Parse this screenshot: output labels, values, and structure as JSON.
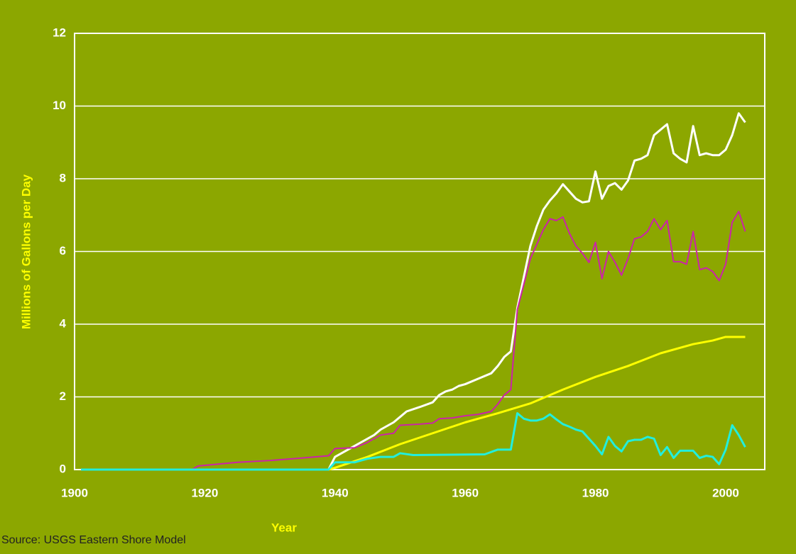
{
  "chart_data": {
    "type": "line",
    "x_label": "Year",
    "y_label": "Millions of Gallons per Day",
    "source": "Source: USGS Eastern Shore Model",
    "xlim": [
      1900,
      2006
    ],
    "xticks": [
      1900,
      1920,
      1940,
      1960,
      1980,
      2000
    ],
    "ylim": [
      0,
      12
    ],
    "yticks": [
      0,
      2,
      4,
      6,
      8,
      10,
      12
    ],
    "grid": true,
    "series": [
      {
        "color": "#ffffff",
        "x": [
          1901,
          1939,
          1940,
          1942,
          1944,
          1946,
          1947,
          1949,
          1950,
          1951,
          1953,
          1955,
          1956,
          1957,
          1958,
          1959,
          1960,
          1962,
          1964,
          1965,
          1966,
          1967,
          1968,
          1969,
          1970,
          1971,
          1972,
          1973,
          1974,
          1975,
          1976,
          1977,
          1978,
          1979,
          1980,
          1981,
          1982,
          1983,
          1984,
          1985,
          1986,
          1987,
          1988,
          1989,
          1990,
          1991,
          1992,
          1993,
          1994,
          1995,
          1996,
          1997,
          1998,
          1999,
          2000,
          2001,
          2002,
          2003
        ],
        "values": [
          0,
          0,
          0.35,
          0.55,
          0.75,
          0.95,
          1.1,
          1.3,
          1.45,
          1.6,
          1.72,
          1.85,
          2.05,
          2.15,
          2.2,
          2.3,
          2.35,
          2.5,
          2.65,
          2.85,
          3.1,
          3.25,
          4.45,
          5.3,
          6.15,
          6.7,
          7.15,
          7.4,
          7.6,
          7.85,
          7.65,
          7.45,
          7.35,
          7.38,
          8.2,
          7.45,
          7.8,
          7.88,
          7.7,
          7.95,
          8.5,
          8.55,
          8.65,
          9.2,
          9.35,
          9.5,
          8.7,
          8.55,
          8.45,
          9.45,
          8.65,
          8.7,
          8.65,
          8.65,
          8.8,
          9.2,
          9.8,
          9.55
        ]
      },
      {
        "color": "#cc22aa",
        "x": [
          1901,
          1918,
          1919,
          1925,
          1930,
          1935,
          1939,
          1940,
          1943,
          1945,
          1947,
          1949,
          1950,
          1953,
          1955,
          1956,
          1958,
          1960,
          1962,
          1964,
          1965,
          1966,
          1967,
          1968,
          1969,
          1970,
          1971,
          1972,
          1973,
          1974,
          1975,
          1976,
          1977,
          1978,
          1979,
          1980,
          1981,
          1982,
          1983,
          1984,
          1985,
          1986,
          1987,
          1988,
          1989,
          1990,
          1991,
          1992,
          1993,
          1994,
          1995,
          1996,
          1997,
          1998,
          1999,
          2000,
          2001,
          2002,
          2003
        ],
        "values": [
          0,
          0,
          0.1,
          0.2,
          0.25,
          0.32,
          0.38,
          0.58,
          0.6,
          0.75,
          0.95,
          1.0,
          1.22,
          1.25,
          1.28,
          1.4,
          1.42,
          1.48,
          1.52,
          1.6,
          1.8,
          2.05,
          2.2,
          4.4,
          5.1,
          5.8,
          6.2,
          6.6,
          6.9,
          6.85,
          6.95,
          6.5,
          6.15,
          5.95,
          5.7,
          6.25,
          5.25,
          6.0,
          5.7,
          5.35,
          5.8,
          6.35,
          6.4,
          6.55,
          6.9,
          6.6,
          6.85,
          5.72,
          5.72,
          5.65,
          6.55,
          5.5,
          5.55,
          5.45,
          5.2,
          5.65,
          6.8,
          7.1,
          6.55
        ]
      },
      {
        "color": "#ffff00",
        "x": [
          1939,
          1940,
          1945,
          1950,
          1955,
          1960,
          1965,
          1970,
          1975,
          1980,
          1985,
          1990,
          1995,
          1998,
          2000,
          2003
        ],
        "values": [
          0,
          0.05,
          0.35,
          0.7,
          1.0,
          1.3,
          1.55,
          1.82,
          2.2,
          2.55,
          2.85,
          3.2,
          3.45,
          3.55,
          3.65,
          3.65
        ]
      },
      {
        "color": "#22eedd",
        "x": [
          1901,
          1939,
          1940,
          1943,
          1945,
          1947,
          1949,
          1950,
          1952,
          1963,
          1965,
          1967,
          1968,
          1969,
          1970,
          1971,
          1972,
          1973,
          1974,
          1975,
          1976,
          1977,
          1978,
          1979,
          1980,
          1981,
          1982,
          1983,
          1984,
          1985,
          1986,
          1987,
          1988,
          1989,
          1990,
          1991,
          1992,
          1993,
          1994,
          1995,
          1996,
          1997,
          1998,
          1999,
          2000,
          2001,
          2002,
          2003
        ],
        "values": [
          0,
          0,
          0.2,
          0.2,
          0.3,
          0.35,
          0.35,
          0.45,
          0.4,
          0.42,
          0.55,
          0.55,
          1.55,
          1.4,
          1.35,
          1.35,
          1.4,
          1.52,
          1.38,
          1.25,
          1.18,
          1.1,
          1.05,
          0.85,
          0.65,
          0.42,
          0.9,
          0.65,
          0.5,
          0.78,
          0.82,
          0.82,
          0.9,
          0.85,
          0.4,
          0.62,
          0.32,
          0.52,
          0.52,
          0.52,
          0.32,
          0.38,
          0.35,
          0.15,
          0.55,
          1.22,
          0.95,
          0.62
        ]
      }
    ]
  }
}
